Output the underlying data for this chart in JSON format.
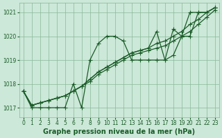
{
  "title": "Graphe pression niveau de la mer (hPa)",
  "background_color": "#cce8d8",
  "line_color": "#1a5c28",
  "grid_color": "#88b898",
  "xlim": [
    -0.5,
    23.5
  ],
  "ylim": [
    1016.6,
    1021.4
  ],
  "yticks": [
    1017,
    1018,
    1019,
    1020,
    1021
  ],
  "xticks": [
    0,
    1,
    2,
    3,
    4,
    5,
    6,
    7,
    8,
    9,
    10,
    11,
    12,
    13,
    14,
    15,
    16,
    17,
    18,
    19,
    20,
    21,
    22,
    23
  ],
  "series": [
    [
      1017.7,
      1017.0,
      1017.0,
      1017.0,
      1017.0,
      1017.0,
      1018.0,
      1017.0,
      1019.0,
      1019.7,
      1020.0,
      1020.0,
      1019.8,
      1019.0,
      1019.0,
      1019.0,
      1019.0,
      1019.0,
      1020.3,
      1020.0,
      1020.0,
      1021.0,
      1021.0,
      1021.2
    ],
    [
      1017.7,
      1017.1,
      1017.2,
      1017.3,
      1017.4,
      1017.5,
      1017.7,
      1017.9,
      1018.1,
      1018.4,
      1018.6,
      1018.8,
      1019.0,
      1019.2,
      1019.3,
      1019.4,
      1019.5,
      1019.6,
      1019.8,
      1020.0,
      1020.2,
      1020.5,
      1020.8,
      1021.1
    ],
    [
      1017.7,
      1017.1,
      1017.2,
      1017.3,
      1017.4,
      1017.5,
      1017.7,
      1017.9,
      1018.2,
      1018.5,
      1018.7,
      1018.9,
      1019.1,
      1019.3,
      1019.4,
      1019.5,
      1019.7,
      1019.8,
      1020.0,
      1020.2,
      1020.5,
      1020.7,
      1021.0,
      1021.2
    ],
    [
      1017.7,
      1017.1,
      1017.2,
      1017.3,
      1017.4,
      1017.5,
      1017.7,
      1017.9,
      1018.2,
      1018.5,
      1018.7,
      1018.9,
      1019.1,
      1019.3,
      1019.4,
      1019.5,
      1020.2,
      1019.0,
      1019.2,
      1020.0,
      1021.0,
      1021.0,
      1021.0,
      1021.2
    ]
  ],
  "marker": "+",
  "marker_size": 4,
  "linewidth": 0.9,
  "title_fontsize": 7.0,
  "tick_fontsize": 5.5
}
